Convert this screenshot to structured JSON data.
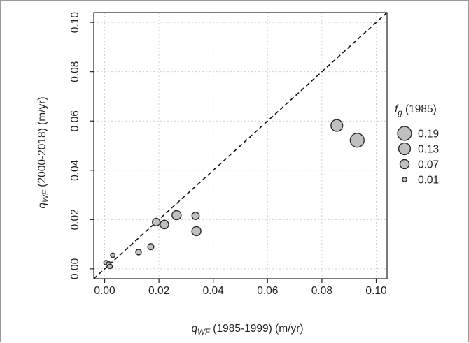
{
  "chart_data": {
    "type": "scatter",
    "x_axis": {
      "label_var": "q",
      "label_sub": "WF",
      "label_rest": " (1985-1999) (m/yr)",
      "lim": [
        -0.004,
        0.104
      ],
      "ticks": [
        0.0,
        0.02,
        0.04,
        0.06,
        0.08,
        0.1
      ],
      "tick_labels": [
        "0.00",
        "0.02",
        "0.04",
        "0.06",
        "0.08",
        "0.10"
      ]
    },
    "y_axis": {
      "label_var": "q",
      "label_sub": "WF",
      "label_rest": " (2000-2018) (m/yr)",
      "lim": [
        -0.004,
        0.104
      ],
      "ticks": [
        0.0,
        0.02,
        0.04,
        0.06,
        0.08,
        0.1
      ],
      "tick_labels": [
        "0.00",
        "0.02",
        "0.04",
        "0.06",
        "0.08",
        "0.10"
      ]
    },
    "grid": true,
    "reference_line": "1:1 dashed",
    "points": [
      {
        "x": 0.0005,
        "y": 0.0025,
        "f": 0.01
      },
      {
        "x": 0.0015,
        "y": 0.002,
        "f": 0.01
      },
      {
        "x": 0.002,
        "y": 0.001,
        "f": 0.01
      },
      {
        "x": 0.003,
        "y": 0.0055,
        "f": 0.01
      },
      {
        "x": 0.0125,
        "y": 0.0068,
        "f": 0.02
      },
      {
        "x": 0.017,
        "y": 0.009,
        "f": 0.025
      },
      {
        "x": 0.019,
        "y": 0.019,
        "f": 0.045
      },
      {
        "x": 0.022,
        "y": 0.018,
        "f": 0.06
      },
      {
        "x": 0.0265,
        "y": 0.0218,
        "f": 0.07
      },
      {
        "x": 0.0335,
        "y": 0.0215,
        "f": 0.04
      },
      {
        "x": 0.0338,
        "y": 0.0153,
        "f": 0.07
      },
      {
        "x": 0.0855,
        "y": 0.0582,
        "f": 0.13
      },
      {
        "x": 0.093,
        "y": 0.0522,
        "f": 0.19
      }
    ],
    "marker_color": "#c0c0c0",
    "marker_edge": "#2a2a2a",
    "legend": {
      "position": "right",
      "title_var": "f",
      "title_sub": "g",
      "title_rest": " (1985)",
      "entries": [
        {
          "label": "0.19",
          "f": 0.19
        },
        {
          "label": "0.13",
          "f": 0.13
        },
        {
          "label": "0.07",
          "f": 0.07
        },
        {
          "label": "0.01",
          "f": 0.01
        }
      ]
    }
  }
}
